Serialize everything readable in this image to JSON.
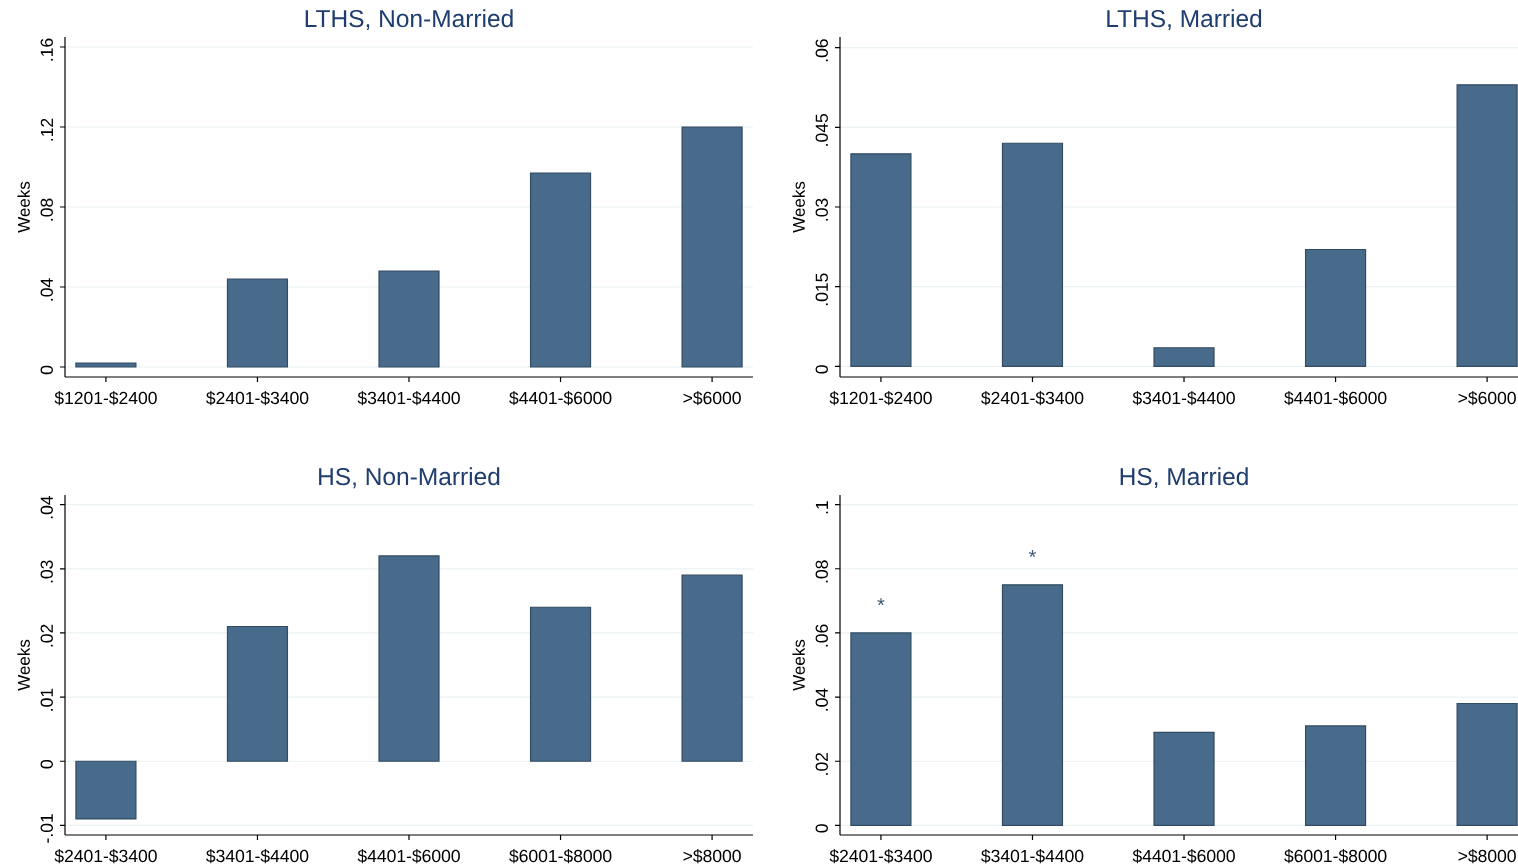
{
  "chart_data": [
    {
      "type": "bar",
      "title": "LTHS, Non-Married",
      "ylabel": "Weeks",
      "categories": [
        "$1201-$2400",
        "$2401-$3400",
        "$3401-$4400",
        "$4401-$6000",
        ">$6000"
      ],
      "values": [
        0.002,
        0.044,
        0.048,
        0.097,
        0.12
      ],
      "color": "#486b8c",
      "ylim": [
        -0.005,
        0.165
      ],
      "yticks": [
        0,
        {
          "value": 0.04,
          "label": ".04"
        },
        {
          "value": 0.08,
          "label": ".08"
        },
        {
          "value": 0.12,
          "label": ".12"
        },
        {
          "value": 0.16,
          "label": ".16"
        }
      ],
      "grid": "y"
    },
    {
      "type": "bar",
      "title": "LTHS, Married",
      "ylabel": "Weeks",
      "categories": [
        "$1201-$2400",
        "$2401-$3400",
        "$3401-$4400",
        "$4401-$6000",
        ">$6000"
      ],
      "values": [
        0.04,
        0.042,
        0.0035,
        0.022,
        0.053
      ],
      "color": "#486b8c",
      "ylim": [
        -0.002,
        0.062
      ],
      "yticks": [
        0,
        {
          "value": 0.015,
          "label": ".015"
        },
        {
          "value": 0.03,
          "label": ".03"
        },
        {
          "value": 0.045,
          "label": ".045"
        },
        {
          "value": 0.06,
          "label": ".06"
        }
      ],
      "grid": "y"
    },
    {
      "type": "bar",
      "title": "HS, Non-Married",
      "ylabel": "Weeks",
      "categories": [
        "$2401-$3400",
        "$3401-$4400",
        "$4401-$6000",
        "$6001-$8000",
        ">$8000"
      ],
      "values": [
        -0.009,
        0.021,
        0.032,
        0.024,
        0.029
      ],
      "color": "#486b8c",
      "ylim": [
        -0.0115,
        0.0415
      ],
      "yticks": [
        {
          "value": -0.01,
          "label": "-.01"
        },
        0,
        {
          "value": 0.01,
          "label": ".01"
        },
        {
          "value": 0.02,
          "label": ".02"
        },
        {
          "value": 0.03,
          "label": ".03"
        },
        {
          "value": 0.04,
          "label": ".04"
        }
      ],
      "grid": "y"
    },
    {
      "type": "bar",
      "title": "HS, Married",
      "ylabel": "Weeks",
      "categories": [
        "$2401-$3400",
        "$3401-$4400",
        "$4401-$6000",
        "$6001-$8000",
        ">$8000"
      ],
      "values": [
        0.06,
        0.075,
        0.029,
        0.031,
        0.038
      ],
      "color": "#486b8c",
      "ylim": [
        -0.003,
        0.103
      ],
      "yticks": [
        0,
        {
          "value": 0.02,
          "label": ".02"
        },
        {
          "value": 0.04,
          "label": ".04"
        },
        {
          "value": 0.06,
          "label": ".06"
        },
        {
          "value": 0.08,
          "label": ".08"
        },
        {
          "value": 0.1,
          "label": ".1"
        }
      ],
      "grid": "y",
      "annotations": [
        {
          "text": "*",
          "x": "$2401-$3400",
          "y": 0.06
        },
        {
          "text": "*",
          "x": "$3401-$4400",
          "y": 0.075
        }
      ]
    }
  ]
}
